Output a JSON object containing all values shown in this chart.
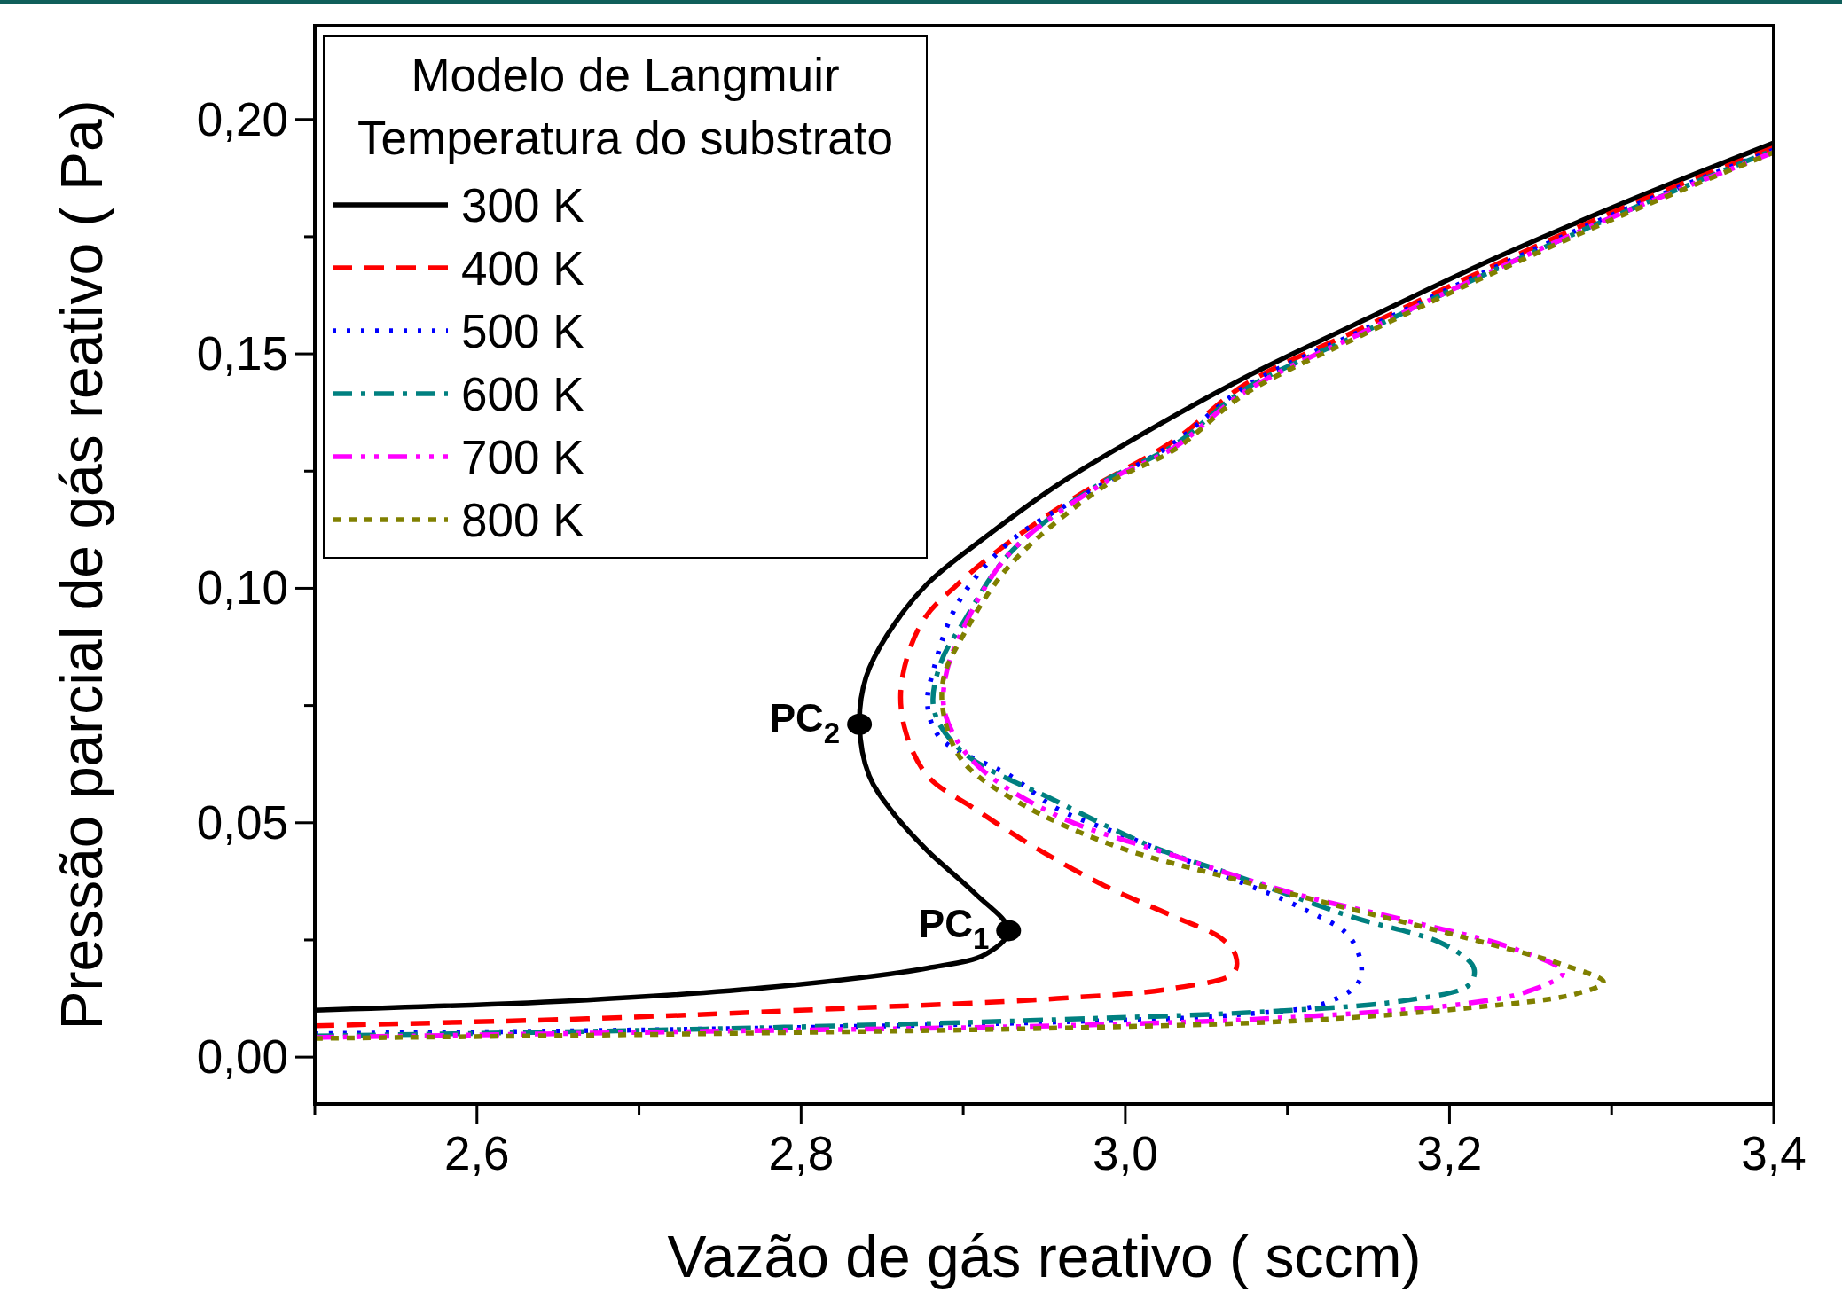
{
  "chart_data": {
    "type": "line",
    "xlabel": "Vazão de gás reativo (  sccm)",
    "ylabel": "Pressão parcial de gás reativo (  Pa)",
    "legend_title": "Modelo de Langmuir\nTemperatura do substrato",
    "legend": "top left",
    "xlim": [
      2.5,
      3.4
    ],
    "ylim": [
      -0.01,
      0.22
    ],
    "xticks": [
      {
        "value": 2.5,
        "label": null
      },
      {
        "value": 2.6,
        "label": "2,6"
      },
      {
        "value": 2.7,
        "label": null
      },
      {
        "value": 2.8,
        "label": "2,8"
      },
      {
        "value": 2.9,
        "label": null
      },
      {
        "value": 3.0,
        "label": "3,0"
      },
      {
        "value": 3.1,
        "label": null
      },
      {
        "value": 3.2,
        "label": "3,2"
      },
      {
        "value": 3.3,
        "label": null
      },
      {
        "value": 3.4,
        "label": "3,4"
      }
    ],
    "yticks": [
      {
        "value": 0,
        "label": "0,00"
      },
      {
        "value": 0.025,
        "label": null
      },
      {
        "value": 0.05,
        "label": "0,05"
      },
      {
        "value": 0.075,
        "label": null
      },
      {
        "value": 0.1,
        "label": "0,10"
      },
      {
        "value": 0.125,
        "label": null
      },
      {
        "value": 0.15,
        "label": "0,15"
      },
      {
        "value": 0.175,
        "label": null
      },
      {
        "value": 0.2,
        "label": "0,20"
      }
    ],
    "grid": false,
    "marker": "none",
    "series": [
      {
        "name": "300 K",
        "color": "#000000",
        "line_style": "solid",
        "x": [
          2.5,
          2.668,
          2.784,
          2.878,
          2.914,
          2.928,
          2.907,
          2.878,
          2.857,
          2.842,
          2.836,
          2.84,
          2.853,
          2.878,
          2.914,
          2.958,
          3.001,
          3.074,
          3.146,
          3.219,
          3.306,
          3.4
        ],
        "values": [
          0.01,
          0.0122,
          0.015,
          0.019,
          0.022,
          0.027,
          0.035,
          0.044,
          0.052,
          0.06,
          0.071,
          0.081,
          0.09,
          0.101,
          0.111,
          0.122,
          0.131,
          0.145,
          0.157,
          0.169,
          0.182,
          0.195
        ]
      },
      {
        "name": "400 K",
        "color": "#ff0000",
        "line_style": "dashed",
        "x": [
          2.5,
          2.668,
          2.813,
          2.958,
          3.03,
          3.067,
          3.068,
          3.059,
          3.03,
          2.987,
          2.943,
          2.907,
          2.878,
          2.864,
          2.862,
          2.875,
          2.897,
          2.929,
          2.972,
          3.03,
          3.074,
          3.146,
          3.219,
          3.306,
          3.4
        ],
        "values": [
          0.0067,
          0.0082,
          0.0102,
          0.0125,
          0.0147,
          0.018,
          0.0217,
          0.0254,
          0.03,
          0.0366,
          0.045,
          0.053,
          0.06,
          0.07,
          0.08,
          0.093,
          0.101,
          0.11,
          0.12,
          0.1315,
          0.1435,
          0.1555,
          0.1675,
          0.181,
          0.194
        ]
      },
      {
        "name": "500 K",
        "color": "#0000ff",
        "line_style": "dotted",
        "x": [
          2.5,
          2.741,
          2.958,
          3.067,
          3.125,
          3.145,
          3.139,
          3.11,
          3.059,
          3.001,
          2.958,
          2.929,
          2.886,
          2.878,
          2.882,
          2.897,
          2.929,
          2.98,
          3.03,
          3.074,
          3.146,
          3.219,
          3.306,
          3.4
        ],
        "values": [
          0.005,
          0.006,
          0.0075,
          0.009,
          0.0117,
          0.0167,
          0.0254,
          0.0316,
          0.039,
          0.047,
          0.053,
          0.06,
          0.068,
          0.075,
          0.083,
          0.097,
          0.11,
          0.121,
          0.131,
          0.143,
          0.155,
          0.167,
          0.1805,
          0.1935
        ]
      },
      {
        "name": "600 K",
        "color": "#008080",
        "line_style": "dashdot",
        "x": [
          2.5,
          2.741,
          2.958,
          3.103,
          3.175,
          3.212,
          3.215,
          3.197,
          3.139,
          3.074,
          3.016,
          2.958,
          2.9,
          2.882,
          2.886,
          2.9,
          2.929,
          2.983,
          3.03,
          3.074,
          3.146,
          3.219,
          3.306,
          3.4
        ],
        "values": [
          0.0045,
          0.006,
          0.008,
          0.01,
          0.0122,
          0.0154,
          0.019,
          0.024,
          0.03,
          0.038,
          0.045,
          0.0545,
          0.065,
          0.074,
          0.084,
          0.0927,
          0.1076,
          0.122,
          0.1305,
          0.1425,
          0.1545,
          0.1665,
          0.18,
          0.1935
        ]
      },
      {
        "name": "700 K",
        "color": "#ff00ff",
        "line_style": "dashdotdot",
        "x": [
          2.5,
          2.741,
          2.958,
          3.103,
          3.212,
          3.248,
          3.27,
          3.241,
          3.175,
          3.103,
          3.03,
          2.958,
          2.907,
          2.889,
          2.889,
          2.9,
          2.929,
          2.987,
          3.03,
          3.074,
          3.146,
          3.219,
          3.306,
          3.4
        ],
        "values": [
          0.0042,
          0.0055,
          0.0067,
          0.0085,
          0.0115,
          0.014,
          0.018,
          0.023,
          0.029,
          0.035,
          0.043,
          0.0515,
          0.0628,
          0.073,
          0.081,
          0.0914,
          0.1076,
          0.1225,
          0.13,
          0.142,
          0.1545,
          0.1665,
          0.18,
          0.193
        ]
      },
      {
        "name": "800 K",
        "color": "#808000",
        "line_style": "shortdash",
        "x": [
          2.5,
          2.741,
          2.958,
          3.103,
          3.212,
          3.277,
          3.295,
          3.27,
          3.204,
          3.139,
          3.067,
          2.994,
          2.936,
          2.9,
          2.888,
          2.888,
          2.9,
          2.929,
          2.99,
          3.03,
          3.074,
          3.146,
          3.219,
          3.306,
          3.4
        ],
        "values": [
          0.004,
          0.005,
          0.0062,
          0.0077,
          0.0105,
          0.0134,
          0.016,
          0.0197,
          0.026,
          0.0316,
          0.038,
          0.045,
          0.054,
          0.063,
          0.073,
          0.081,
          0.09,
          0.105,
          0.1225,
          0.1295,
          0.1415,
          0.154,
          0.166,
          0.1795,
          0.193
        ]
      },
      {
        "type": "scatter",
        "color": "#000000",
        "marker": "circle",
        "x": [
          2.928,
          2.836
        ],
        "values": [
          0.027,
          0.071
        ]
      }
    ],
    "annotations": [
      {
        "text": "PC$_{1}$",
        "x": 2.928,
        "y": 0.027
      },
      {
        "text": "PC$_{2}$",
        "x": 2.836,
        "y": 0.071
      }
    ]
  }
}
